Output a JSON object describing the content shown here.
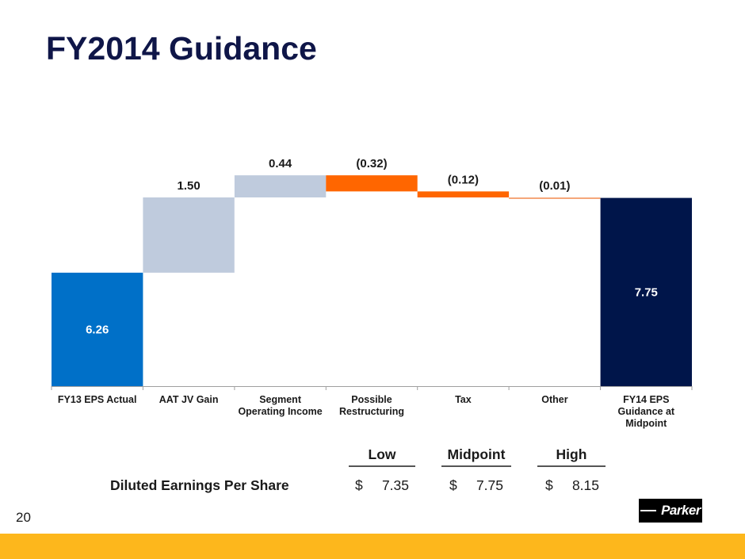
{
  "slide": {
    "title": "FY2014 Guidance",
    "page_number": "20",
    "logo_text": "Parker",
    "footer_color": "#fdb71c",
    "title_color": "#0f1648"
  },
  "chart_data": {
    "type": "bar",
    "subtype": "waterfall",
    "title": "",
    "xlabel": "",
    "ylabel": "",
    "ylim": [
      4.0,
      8.5
    ],
    "grid": false,
    "legend": "none",
    "categories": [
      "FY13 EPS Actual",
      "AAT JV Gain",
      "Segment Operating Income",
      "Possible Restructuring",
      "Tax",
      "Other",
      "FY14 EPS Guidance at Midpoint"
    ],
    "category_lines": [
      [
        "FY13 EPS Actual"
      ],
      [
        "AAT JV Gain"
      ],
      [
        "Segment",
        "Operating Income"
      ],
      [
        "Possible",
        "Restructuring"
      ],
      [
        "Tax"
      ],
      [
        "Other"
      ],
      [
        "FY14 EPS",
        "Guidance at",
        "Midpoint"
      ]
    ],
    "values": [
      6.26,
      1.5,
      0.44,
      -0.32,
      -0.12,
      -0.01,
      7.75
    ],
    "kinds": [
      "total",
      "delta",
      "delta",
      "delta",
      "delta",
      "delta",
      "total"
    ],
    "data_labels": [
      "6.26",
      "1.50",
      "0.44",
      "(0.32)",
      "(0.12)",
      "(0.01)",
      "7.75"
    ],
    "colors": {
      "start_total": "#0070c8",
      "increase": "#bfcbdd",
      "decrease": "#ff6600",
      "small_decrease": "#f5a77a",
      "end_total": "#00154a"
    }
  },
  "guidance_table": {
    "headers": [
      "Low",
      "Midpoint",
      "High"
    ],
    "row_label": "Diluted Earnings Per Share",
    "currency": "$",
    "values": [
      "7.35",
      "7.75",
      "8.15"
    ]
  }
}
